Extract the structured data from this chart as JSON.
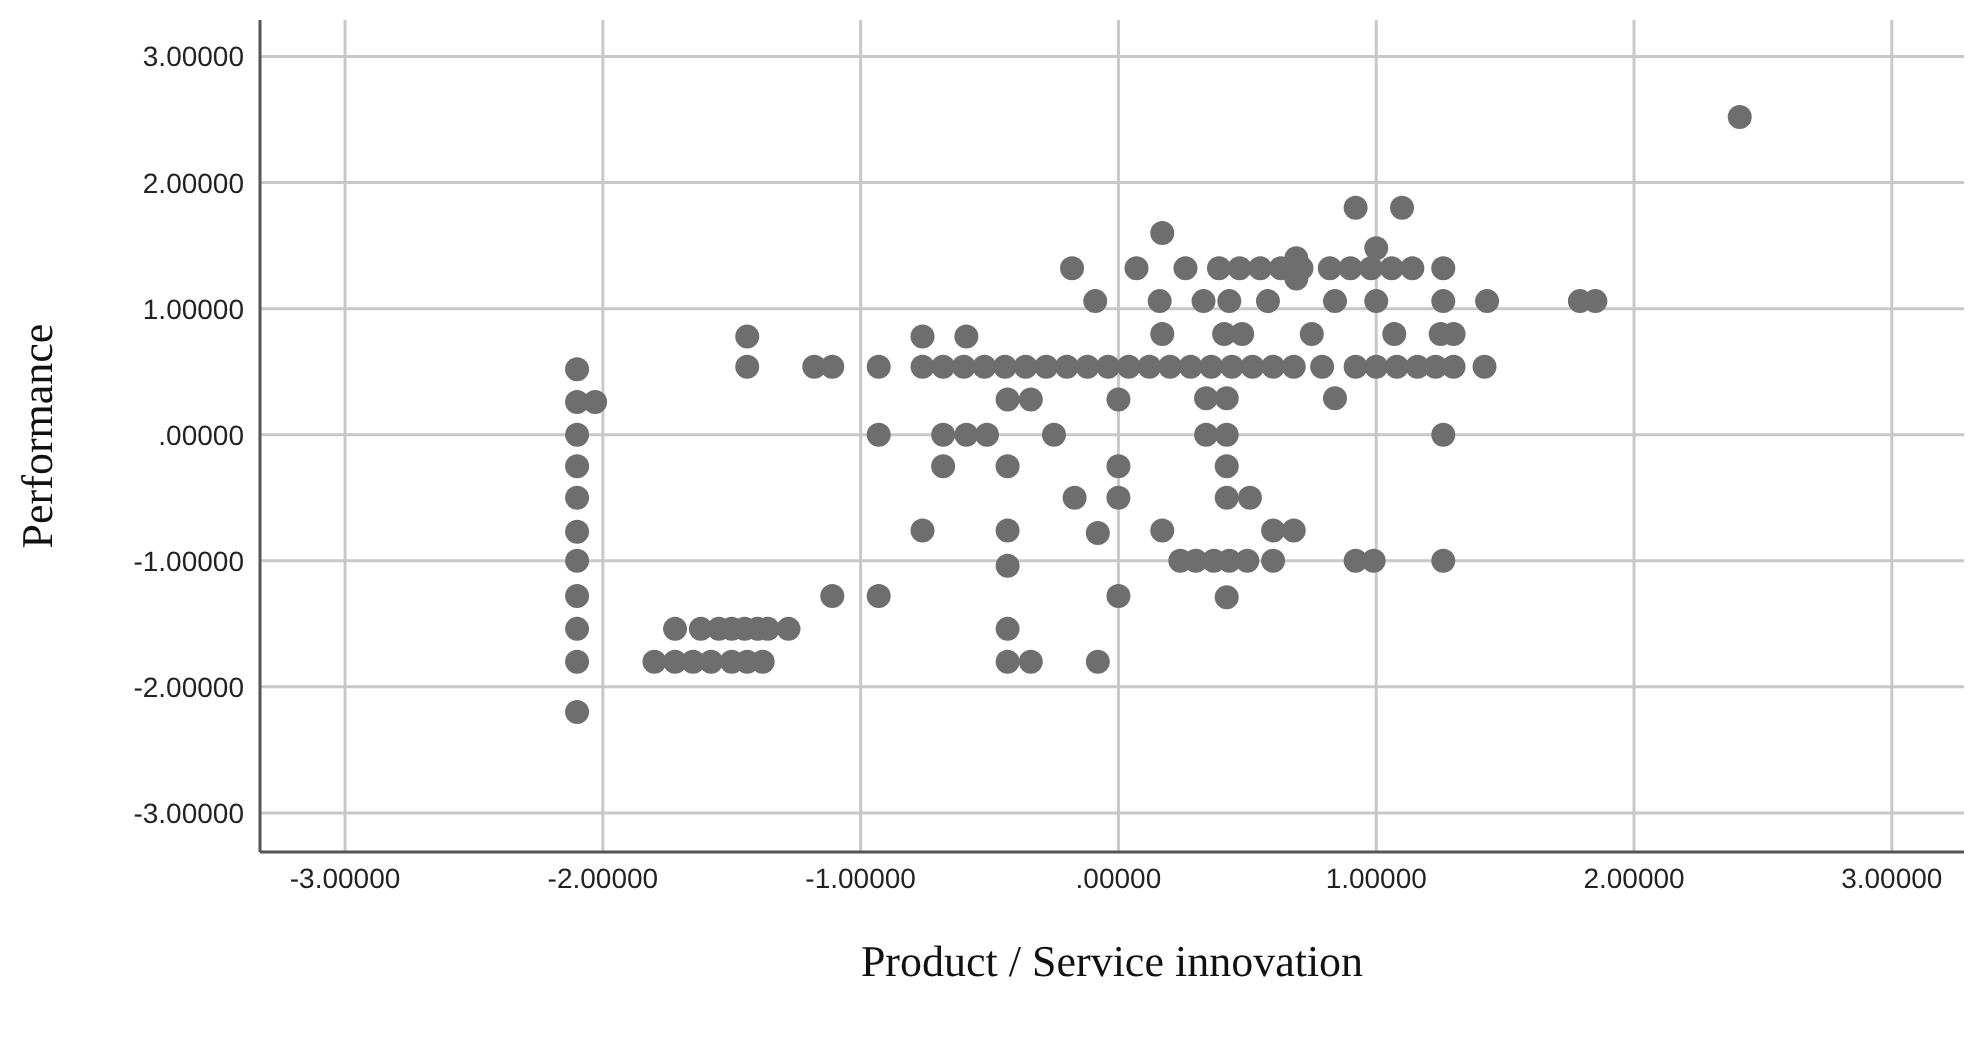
{
  "chart_data": {
    "type": "scatter",
    "xlabel": "Product / Service innovation",
    "ylabel": "Performance",
    "marker": "circle",
    "grid": true,
    "color": "#6e6e6e",
    "xlim": [
      -3.33,
      3.28
    ],
    "ylim": [
      -3.31,
      3.29
    ],
    "xticks": [
      {
        "value": -3,
        "label": "-3.00000"
      },
      {
        "value": -2,
        "label": "-2.00000"
      },
      {
        "value": -1,
        "label": "-1.00000"
      },
      {
        "value": 0,
        "label": ".00000"
      },
      {
        "value": 1,
        "label": "1.00000"
      },
      {
        "value": 2,
        "label": "2.00000"
      },
      {
        "value": 3,
        "label": "3.00000"
      }
    ],
    "yticks": [
      {
        "value": -3,
        "label": "-3.00000"
      },
      {
        "value": -2,
        "label": "-2.00000"
      },
      {
        "value": -1,
        "label": "-1.00000"
      },
      {
        "value": 0,
        "label": ".00000"
      },
      {
        "value": 1,
        "label": "1.00000"
      },
      {
        "value": 2,
        "label": "2.00000"
      },
      {
        "value": 3,
        "label": "3.00000"
      }
    ],
    "x": [
      -2.1,
      -2.1,
      -2.1,
      -2.1,
      -2.1,
      -2.1,
      -2.1,
      -2.1,
      -2.1,
      -2.1,
      -2.1,
      -2.03,
      -1.44,
      -1.44,
      -1.18,
      -1.11,
      -0.93,
      -0.76,
      -0.68,
      -0.6,
      -0.52,
      -0.44,
      -0.36,
      -0.28,
      -0.2,
      -0.12,
      -0.04,
      0.04,
      0.12,
      0.2,
      0.28,
      0.36,
      0.44,
      0.52,
      0.6,
      0.68,
      0.79,
      0.92,
      1.0,
      1.08,
      1.16,
      1.23,
      1.3,
      1.42,
      -0.76,
      -0.59,
      -0.43,
      -0.34,
      0.0,
      -0.93,
      -0.68,
      -0.59,
      -0.51,
      -0.25,
      -0.68,
      -0.43,
      0.0,
      -0.17,
      0.0,
      -0.76,
      -0.43,
      -0.08,
      -0.43,
      -1.11,
      -0.93,
      0.0,
      -1.72,
      -1.62,
      -1.55,
      -1.5,
      -1.45,
      -1.4,
      -1.36,
      -1.28,
      -0.43,
      -1.8,
      -1.72,
      -1.65,
      -1.58,
      -1.5,
      -1.44,
      -1.38,
      -0.43,
      -0.34,
      -0.08,
      0.92,
      1.1,
      0.17,
      0.07,
      0.26,
      0.39,
      0.47,
      0.55,
      0.63,
      0.71,
      0.69,
      0.69,
      0.82,
      0.9,
      0.98,
      1.06,
      1.14,
      1.0,
      1.26,
      0.16,
      0.33,
      0.43,
      0.58,
      0.84,
      1.0,
      1.26,
      1.43,
      1.79,
      1.85,
      0.17,
      0.41,
      0.48,
      0.75,
      1.07,
      1.25,
      1.3,
      0.34,
      0.42,
      0.84,
      0.34,
      0.42,
      1.26,
      0.42,
      0.42,
      0.51,
      0.17,
      0.6,
      0.68,
      0.24,
      0.3,
      0.37,
      0.43,
      0.5,
      0.6,
      0.92,
      0.99,
      1.26,
      0.42,
      -0.09,
      -0.18,
      2.41
    ],
    "values": [
      0.52,
      0.26,
      0.0,
      -0.25,
      -0.5,
      -0.77,
      -1.0,
      -1.28,
      -1.54,
      -1.8,
      -2.2,
      0.26,
      0.78,
      0.54,
      0.54,
      0.54,
      0.54,
      0.54,
      0.54,
      0.54,
      0.54,
      0.54,
      0.54,
      0.54,
      0.54,
      0.54,
      0.54,
      0.54,
      0.54,
      0.54,
      0.54,
      0.54,
      0.54,
      0.54,
      0.54,
      0.54,
      0.54,
      0.54,
      0.54,
      0.54,
      0.54,
      0.54,
      0.54,
      0.54,
      0.78,
      0.78,
      0.28,
      0.28,
      0.28,
      0.0,
      0.0,
      0.0,
      0.0,
      0.0,
      -0.25,
      -0.25,
      -0.25,
      -0.5,
      -0.5,
      -0.76,
      -0.76,
      -0.78,
      -1.04,
      -1.28,
      -1.28,
      -1.28,
      -1.54,
      -1.54,
      -1.54,
      -1.54,
      -1.54,
      -1.54,
      -1.54,
      -1.54,
      -1.54,
      -1.8,
      -1.8,
      -1.8,
      -1.8,
      -1.8,
      -1.8,
      -1.8,
      -1.8,
      -1.8,
      -1.8,
      1.8,
      1.8,
      1.6,
      1.32,
      1.32,
      1.32,
      1.32,
      1.32,
      1.32,
      1.32,
      1.4,
      1.24,
      1.32,
      1.32,
      1.32,
      1.32,
      1.32,
      1.48,
      1.32,
      1.06,
      1.06,
      1.06,
      1.06,
      1.06,
      1.06,
      1.06,
      1.06,
      1.06,
      1.06,
      0.8,
      0.8,
      0.8,
      0.8,
      0.8,
      0.8,
      0.8,
      0.29,
      0.29,
      0.29,
      0.0,
      0.0,
      0.0,
      -0.25,
      -0.5,
      -0.5,
      -0.76,
      -0.76,
      -0.76,
      -1.0,
      -1.0,
      -1.0,
      -1.0,
      -1.0,
      -1.0,
      -1.0,
      -1.0,
      -1.0,
      -1.29,
      1.06,
      1.32,
      2.52
    ]
  }
}
